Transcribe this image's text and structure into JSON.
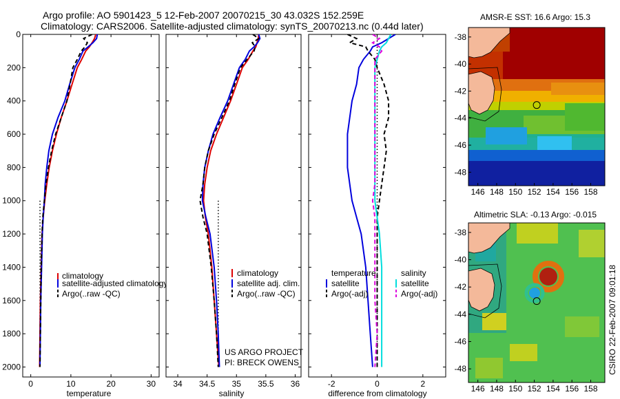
{
  "header": {
    "title": "Argo profile: AO 5901423_5 12-Feb-2007 20070215_30 43.032S 152.259E",
    "subtitle": "Climatology: CARS2006. Satellite-adjusted climatology: synTS_20070213.nc (0.44d later)"
  },
  "colors": {
    "climatology": "#dd0000",
    "satellite": "#0000dd",
    "argo": "#000000",
    "sal_satellite": "#00dddd",
    "sal_argo": "#dd00dd",
    "land": "#f4b99a"
  },
  "chart_data": [
    {
      "type": "line",
      "id": "temperature",
      "xlabel": "temperature",
      "ylabel": "",
      "xlim": [
        -2,
        32
      ],
      "ylim": [
        2060,
        0
      ],
      "xticks": [
        0,
        10,
        20,
        30
      ],
      "yticks": [
        0,
        200,
        400,
        600,
        800,
        1000,
        1200,
        1400,
        1600,
        1800,
        2000
      ],
      "legend": [
        "climatology",
        "satellite-adjusted climatology",
        "Argo(..raw -QC)"
      ],
      "series": [
        {
          "name": "climatology",
          "color": "#dd0000",
          "dash": "solid",
          "x": [
            16.2,
            15.9,
            15.3,
            14.6,
            13.7,
            12.7,
            11.6,
            10.3,
            9.0,
            7.6,
            6.4,
            5.4,
            4.6,
            4.0,
            3.5,
            3.1,
            2.8,
            2.6,
            2.4,
            2.3,
            2.2
          ],
          "y": [
            0,
            25,
            50,
            75,
            100,
            150,
            200,
            300,
            400,
            500,
            600,
            700,
            800,
            900,
            1000,
            1100,
            1200,
            1400,
            1600,
            1800,
            2000
          ]
        },
        {
          "name": "satellite-adjusted climatology",
          "color": "#0000dd",
          "dash": "solid",
          "x": [
            16.6,
            16.4,
            15.5,
            14.3,
            13.0,
            12.1,
            11.0,
            9.7,
            8.5,
            6.8,
            5.4,
            4.5,
            4.0,
            3.6,
            3.4,
            3.1,
            2.9,
            2.7,
            2.5,
            2.4,
            2.3
          ],
          "y": [
            0,
            25,
            50,
            75,
            100,
            150,
            200,
            300,
            400,
            500,
            600,
            700,
            800,
            900,
            1000,
            1100,
            1200,
            1400,
            1600,
            1800,
            2000
          ]
        },
        {
          "name": "Argo(..raw -QC)",
          "color": "#000000",
          "dash": "dash",
          "x": [
            15.3,
            13.2,
            14.1,
            13.5,
            12.6,
            11.6,
            10.5,
            9.8,
            9.0,
            7.6,
            6.2,
            5.2,
            4.4,
            3.8,
            3.4,
            3.0,
            2.8,
            2.6,
            2.5,
            2.4,
            2.3
          ],
          "y": [
            0,
            25,
            50,
            75,
            100,
            150,
            200,
            300,
            400,
            500,
            600,
            700,
            800,
            900,
            1000,
            1100,
            1200,
            1400,
            1600,
            1800,
            2000
          ]
        }
      ],
      "dotted_ref": {
        "x": 2.3,
        "y": [
          1000,
          2000
        ]
      }
    },
    {
      "type": "line",
      "id": "salinity",
      "xlabel": "salinity",
      "ylabel": "",
      "xlim": [
        33.8,
        36.1
      ],
      "ylim": [
        2060,
        0
      ],
      "xticks": [
        34,
        34.5,
        35,
        35.5,
        36
      ],
      "yticks": [
        0,
        200,
        400,
        600,
        800,
        1000,
        1200,
        1400,
        1600,
        1800,
        2000
      ],
      "legend": [
        "climatology",
        "satellite adj. clim.",
        "Argo(..raw -QC)"
      ],
      "annotation": [
        "US ARGO PROJECT",
        "PI: BRECK OWENS"
      ],
      "series": [
        {
          "name": "climatology",
          "color": "#dd0000",
          "dash": "solid",
          "x": [
            35.38,
            35.37,
            35.35,
            35.33,
            35.28,
            35.2,
            35.1,
            35.0,
            34.9,
            34.78,
            34.66,
            34.56,
            34.5,
            34.46,
            34.44,
            34.47,
            34.52,
            34.58,
            34.62,
            34.66,
            34.7
          ],
          "y": [
            0,
            25,
            50,
            75,
            100,
            150,
            200,
            300,
            400,
            500,
            600,
            700,
            800,
            900,
            1000,
            1100,
            1200,
            1400,
            1600,
            1800,
            2000
          ]
        },
        {
          "name": "satellite adj. clim.",
          "color": "#0000dd",
          "dash": "solid",
          "x": [
            35.38,
            35.4,
            35.36,
            35.3,
            35.22,
            35.15,
            35.05,
            34.95,
            34.85,
            34.72,
            34.6,
            34.52,
            34.46,
            34.43,
            34.42,
            34.48,
            34.55,
            34.62,
            34.66,
            34.69,
            34.71
          ],
          "y": [
            0,
            25,
            50,
            75,
            100,
            150,
            200,
            300,
            400,
            500,
            600,
            700,
            800,
            900,
            1000,
            1100,
            1200,
            1400,
            1600,
            1800,
            2000
          ]
        },
        {
          "name": "Argo(..raw -QC)",
          "color": "#000000",
          "dash": "dash",
          "x": [
            35.28,
            35.38,
            35.27,
            35.32,
            35.3,
            35.18,
            35.07,
            34.97,
            34.88,
            34.75,
            34.62,
            34.52,
            34.46,
            34.43,
            34.38,
            34.43,
            34.5,
            34.57,
            34.62,
            34.66,
            34.69
          ],
          "y": [
            0,
            25,
            50,
            75,
            100,
            150,
            200,
            300,
            400,
            500,
            600,
            700,
            800,
            900,
            1000,
            1100,
            1200,
            1400,
            1600,
            1800,
            2000
          ]
        }
      ],
      "dotted_ref": {
        "x": 34.69,
        "y": [
          1000,
          2000
        ]
      }
    },
    {
      "type": "line",
      "id": "difference",
      "xlabel": "difference from climatology",
      "ylabel": "",
      "xlim": [
        -3,
        3
      ],
      "ylim": [
        2060,
        0
      ],
      "xticks": [
        -2,
        0,
        2
      ],
      "yticks": [
        0,
        200,
        400,
        600,
        800,
        1000,
        1200,
        1400,
        1600,
        1800,
        2000
      ],
      "legend_title_temperature": "temperature",
      "legend_title_salinity": "salinity",
      "legend_temperature": [
        "satellite",
        "Argo(-adj)"
      ],
      "legend_salinity": [
        "satellite",
        "Argo(-adj)"
      ],
      "series": [
        {
          "name": "temperature satellite",
          "color": "#0000dd",
          "dash": "solid",
          "x": [
            0.8,
            0.5,
            0.2,
            -0.2,
            -0.3,
            -0.6,
            -0.8,
            -0.9,
            -1.1,
            -1.2,
            -1.3,
            -1.3,
            -1.3,
            -1.2,
            -1.1,
            -0.9,
            -0.7,
            -0.5,
            -0.4,
            -0.3,
            -0.2
          ],
          "y": [
            0,
            25,
            50,
            75,
            100,
            150,
            200,
            300,
            400,
            500,
            600,
            700,
            800,
            900,
            1000,
            1100,
            1200,
            1400,
            1600,
            1800,
            2000
          ]
        },
        {
          "name": "temperature Argo(-adj)",
          "color": "#000000",
          "dash": "dash",
          "x": [
            -1.3,
            -0.9,
            -1.2,
            -0.5,
            -0.4,
            -0.1,
            0.0,
            0.3,
            0.5,
            0.5,
            0.3,
            0.4,
            0.3,
            0.2,
            0.1,
            0.0,
            0.0,
            0.0,
            0.0,
            0.0,
            0.0
          ],
          "y": [
            0,
            25,
            50,
            75,
            100,
            150,
            200,
            300,
            400,
            500,
            600,
            700,
            800,
            900,
            1000,
            1100,
            1200,
            1400,
            1600,
            1800,
            2000
          ]
        },
        {
          "name": "salinity satellite",
          "color": "#00dddd",
          "dash": "solid",
          "x": [
            0.6,
            0.5,
            0.4,
            0.2,
            0.1,
            0.0,
            -0.1,
            -0.1,
            -0.1,
            -0.1,
            -0.1,
            -0.1,
            -0.1,
            -0.1,
            -0.1,
            0.0,
            0.1,
            0.2,
            0.2,
            0.2,
            0.2
          ],
          "y": [
            0,
            25,
            50,
            75,
            100,
            150,
            200,
            300,
            400,
            500,
            600,
            700,
            800,
            900,
            1000,
            1100,
            1200,
            1400,
            1600,
            1800,
            2000
          ]
        },
        {
          "name": "salinity Argo(-adj)",
          "color": "#dd00dd",
          "dash": "dash",
          "x": [
            -0.2,
            0.1,
            -0.2,
            0.1,
            0.2,
            -0.1,
            -0.1,
            -0.1,
            -0.1,
            -0.1,
            -0.1,
            -0.1,
            -0.1,
            -0.1,
            -0.2,
            -0.1,
            -0.1,
            -0.1,
            -0.1,
            0.0,
            -0.1
          ],
          "y": [
            0,
            25,
            50,
            75,
            100,
            150,
            200,
            300,
            400,
            500,
            600,
            700,
            800,
            900,
            1000,
            1100,
            1200,
            1400,
            1600,
            1800,
            2000
          ]
        }
      ],
      "dotted_ref": {
        "x": 0,
        "y": [
          0,
          2000
        ]
      }
    },
    {
      "type": "heatmap",
      "id": "sst",
      "title": "AMSR-E SST: 16.6 Argo: 15.3",
      "xlim": [
        145,
        159.5
      ],
      "ylim": [
        -49,
        -37.3
      ],
      "xticks": [
        146,
        148,
        150,
        152,
        154,
        156,
        158
      ],
      "yticks": [
        -38,
        -40,
        -42,
        -44,
        -46,
        -48
      ],
      "marker": {
        "lon": 152.259,
        "lat": -43.032
      }
    },
    {
      "type": "heatmap",
      "id": "sla",
      "title": "Altimetric SLA: -0.13 Argo: -0.015",
      "xlim": [
        145,
        159.5
      ],
      "ylim": [
        -49,
        -37.3
      ],
      "xticks": [
        146,
        148,
        150,
        152,
        154,
        156,
        158
      ],
      "yticks": [
        -38,
        -40,
        -42,
        -44,
        -46,
        -48
      ],
      "marker": {
        "lon": 152.259,
        "lat": -43.032
      }
    }
  ],
  "footer": {
    "side_credit": "CSIRO 22-Feb-2007 09:01:18"
  }
}
